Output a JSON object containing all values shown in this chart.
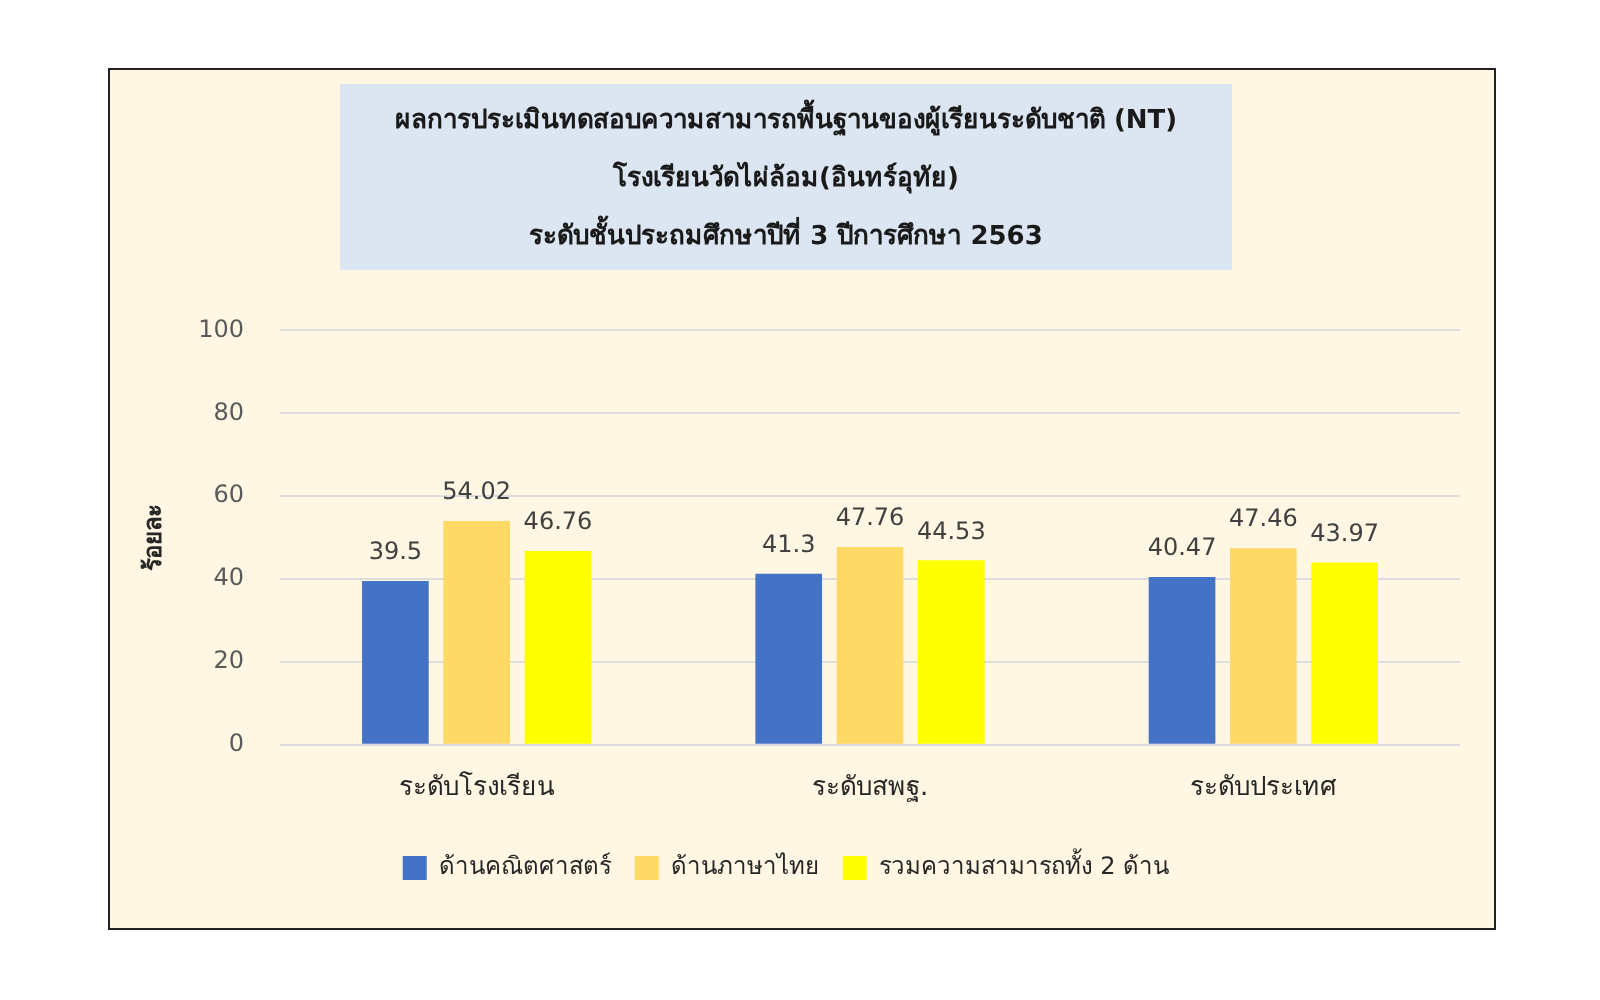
{
  "chart_data": {
    "type": "bar",
    "title": "ผลการประเมินทดสอบความสามารถพื้นฐานของผู้เรียนระดับชาติ (NT)",
    "subtitle": "โรงเรียนวัดไผ่ล้อม(อินทร์อุทัย)\nระดับชั้นประถมศึกษาปีที่ 3 ปีการศึกษา 2563",
    "ylabel": "ร้อยละ",
    "categories": [
      "ระดับโรงเรียน",
      "ระดับสพฐ.",
      "ระดับประเทศ"
    ],
    "series": [
      {
        "name": "ด้านคณิตศาสตร์",
        "color": "#4472c4",
        "values": [
          39.5,
          41.3,
          40.47
        ]
      },
      {
        "name": "ด้านภาษาไทย",
        "color": "#ffd966",
        "values": [
          54.02,
          47.76,
          47.46
        ]
      },
      {
        "name": "รวมความสามารถทั้ง 2 ด้าน",
        "color": "#ffff00",
        "values": [
          46.76,
          44.53,
          43.97
        ]
      }
    ],
    "ylim": [
      0,
      100
    ],
    "yticks": [
      0,
      20,
      40,
      60,
      80,
      100
    ],
    "grid": "y",
    "legend": "bottom",
    "data_labels": true
  }
}
